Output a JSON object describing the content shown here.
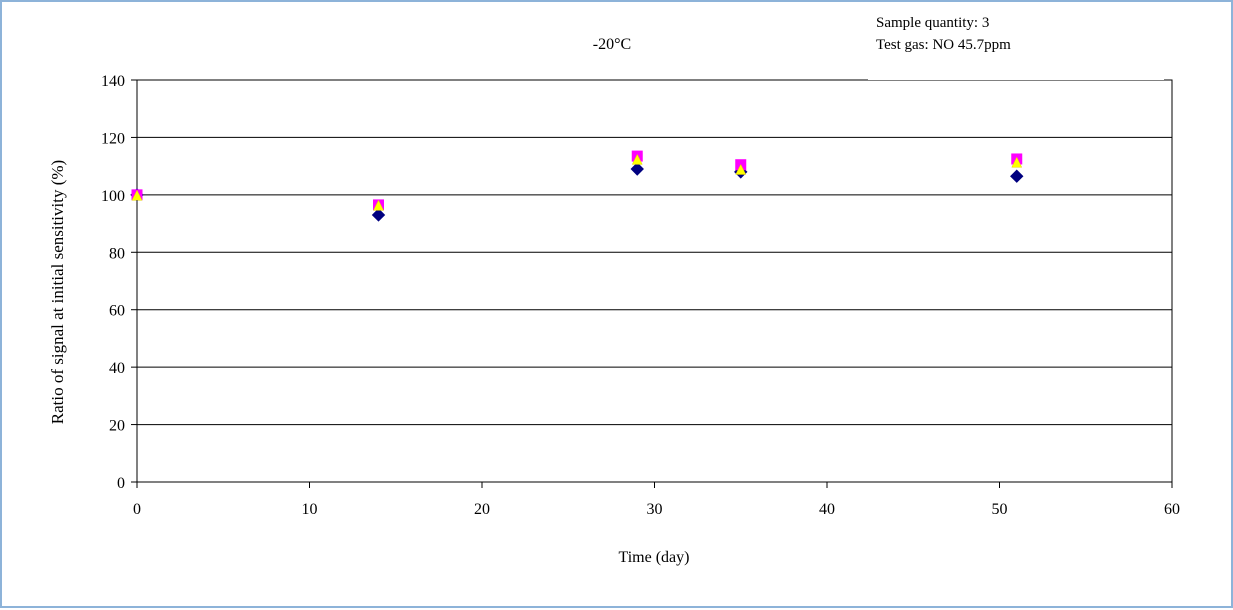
{
  "chart_data": {
    "type": "scatter",
    "title": "-20°C",
    "xlabel": "Time (day)",
    "ylabel": "Ratio of signal at initial sensitivity (%)",
    "xlim": [
      0,
      60
    ],
    "ylim": [
      0,
      140
    ],
    "x_ticks": [
      0,
      10,
      20,
      30,
      40,
      50,
      60
    ],
    "y_ticks": [
      0,
      20,
      40,
      60,
      80,
      100,
      120,
      140
    ],
    "grid": "horizontal",
    "legend": "none",
    "annotations": [
      "Sample quantity:  3",
      "Test gas: NO 45.7ppm"
    ],
    "series": [
      {
        "marker": "diamond",
        "color": "#000080",
        "x": [
          0,
          14,
          29,
          35,
          51
        ],
        "y": [
          100,
          93,
          109,
          108,
          106.5
        ]
      },
      {
        "marker": "square",
        "color": "#ff00ff",
        "x": [
          0,
          14,
          29,
          35,
          51
        ],
        "y": [
          100,
          96.5,
          113.5,
          110.5,
          112.5
        ]
      },
      {
        "marker": "triangle",
        "color": "#ffff00",
        "x": [
          0,
          14,
          29,
          35,
          51
        ],
        "y": [
          99.5,
          96,
          112,
          108.5,
          111
        ]
      }
    ]
  }
}
